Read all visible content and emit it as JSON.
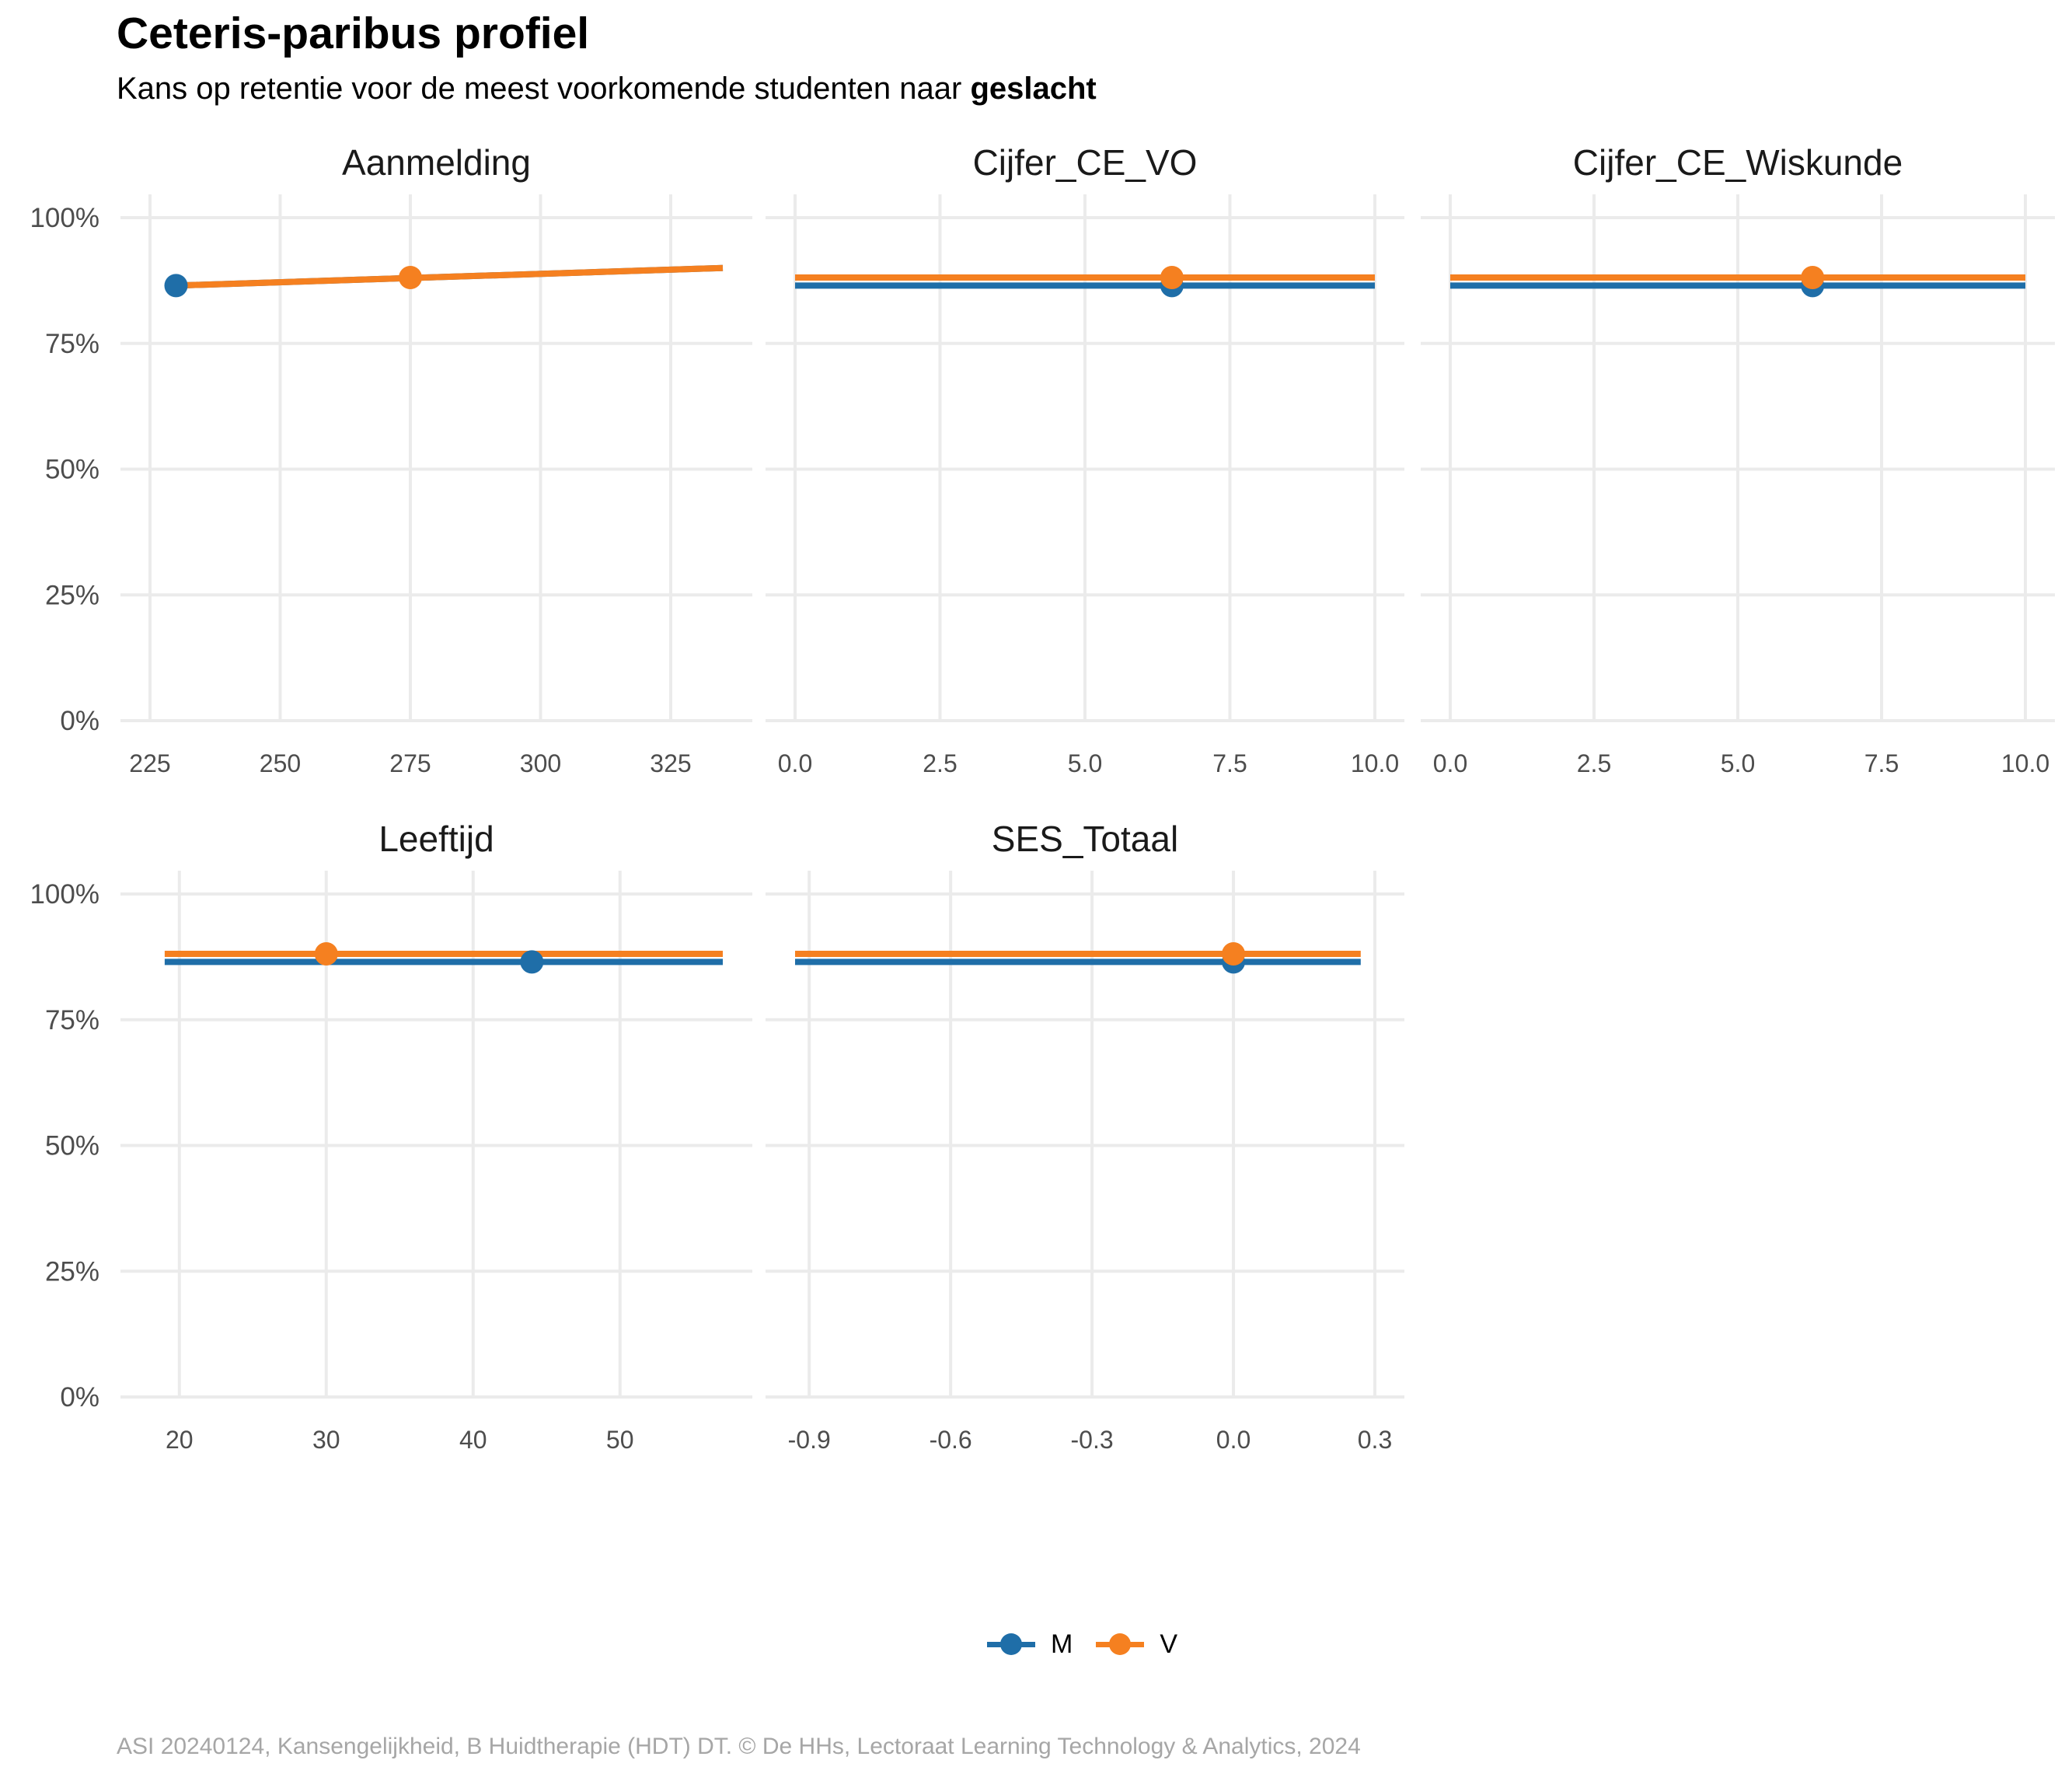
{
  "title": "Ceteris-paribus profiel",
  "subtitle_prefix": "Kans op retentie voor de meest voorkomende studenten naar",
  "subtitle_bold": "geslacht",
  "caption": "ASI 20240124, Kansengelijkheid, B Huidtherapie (HDT) DT. © De HHs, Lectoraat Learning Technology & Analytics, 2024",
  "colors": {
    "M": "#1f6ea8",
    "V": "#f58020",
    "grid": "#ebebeb",
    "tick": "#4d4d4d"
  },
  "legend": [
    {
      "key": "M",
      "label": "M"
    },
    {
      "key": "V",
      "label": "V"
    }
  ],
  "chart_data": {
    "type": "line",
    "facet_layout": "3 columns, 2 rows",
    "ylim": [
      0,
      1
    ],
    "y_ticks": [
      0,
      0.25,
      0.5,
      0.75,
      1.0
    ],
    "y_tick_labels": [
      "0%",
      "25%",
      "50%",
      "75%",
      "100%"
    ],
    "grid": true,
    "legend_position": "bottom",
    "panels": [
      {
        "name": "Aanmelding",
        "xlim": [
          225,
          335
        ],
        "x_ticks": [
          225,
          250,
          275,
          300,
          325
        ],
        "x_tick_labels": [
          "225",
          "250",
          "275",
          "300",
          "325"
        ],
        "series": [
          {
            "name": "M",
            "x": [
              230,
              335
            ],
            "y": [
              0.865,
              0.9
            ],
            "point": [
              230,
              0.865
            ]
          },
          {
            "name": "V",
            "x": [
              230,
              335
            ],
            "y": [
              0.865,
              0.9
            ],
            "point": [
              275,
              0.881
            ]
          }
        ]
      },
      {
        "name": "Cijfer_CE_VO",
        "xlim": [
          0,
          10
        ],
        "x_ticks": [
          0,
          2.5,
          5,
          7.5,
          10
        ],
        "x_tick_labels": [
          "0.0",
          "2.5",
          "5.0",
          "7.5",
          "10.0"
        ],
        "series": [
          {
            "name": "M",
            "x": [
              0,
              10
            ],
            "y": [
              0.865,
              0.865
            ],
            "point": [
              6.5,
              0.865
            ]
          },
          {
            "name": "V",
            "x": [
              0,
              10
            ],
            "y": [
              0.881,
              0.881
            ],
            "point": [
              6.5,
              0.881
            ]
          }
        ]
      },
      {
        "name": "Cijfer_CE_Wiskunde",
        "xlim": [
          0,
          10
        ],
        "x_ticks": [
          0,
          2.5,
          5,
          7.5,
          10
        ],
        "x_tick_labels": [
          "0.0",
          "2.5",
          "5.0",
          "7.5",
          "10.0"
        ],
        "series": [
          {
            "name": "M",
            "x": [
              0,
              10
            ],
            "y": [
              0.865,
              0.865
            ],
            "point": [
              6.3,
              0.865
            ]
          },
          {
            "name": "V",
            "x": [
              0,
              10
            ],
            "y": [
              0.881,
              0.881
            ],
            "point": [
              6.3,
              0.881
            ]
          }
        ]
      },
      {
        "name": "Leeftijd",
        "xlim": [
          18,
          57
        ],
        "x_ticks": [
          20,
          30,
          40,
          50
        ],
        "x_tick_labels": [
          "20",
          "30",
          "40",
          "50"
        ],
        "series": [
          {
            "name": "M",
            "x": [
              19,
              57
            ],
            "y": [
              0.865,
              0.865
            ],
            "point": [
              44,
              0.865
            ]
          },
          {
            "name": "V",
            "x": [
              19,
              57
            ],
            "y": [
              0.881,
              0.881
            ],
            "point": [
              30,
              0.881
            ]
          }
        ]
      },
      {
        "name": "SES_Totaal",
        "xlim": [
          -0.93,
          0.3
        ],
        "x_ticks": [
          -0.9,
          -0.6,
          -0.3,
          0.0,
          0.3
        ],
        "x_tick_labels": [
          "-0.9",
          "-0.6",
          "-0.3",
          "0.0",
          "0.3"
        ],
        "series": [
          {
            "name": "M",
            "x": [
              -0.93,
              0.27
            ],
            "y": [
              0.865,
              0.865
            ],
            "point": [
              0.0,
              0.865
            ]
          },
          {
            "name": "V",
            "x": [
              -0.93,
              0.27
            ],
            "y": [
              0.881,
              0.881
            ],
            "point": [
              0.0,
              0.881
            ]
          }
        ]
      }
    ]
  }
}
